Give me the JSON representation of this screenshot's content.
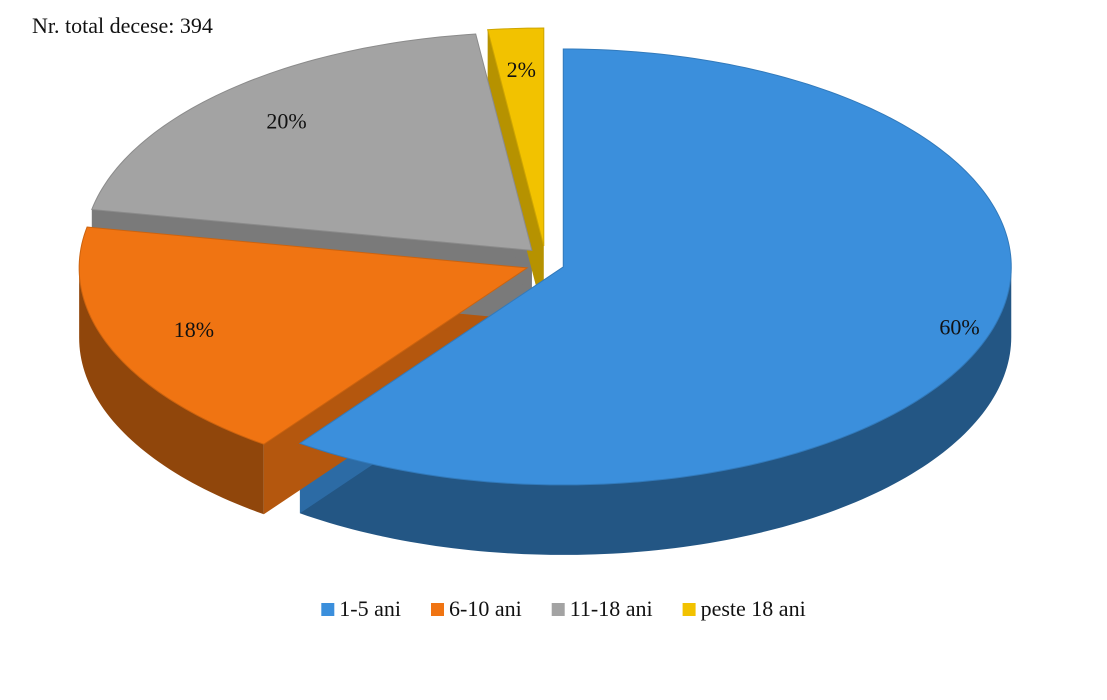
{
  "chart_data": {
    "type": "pie3d",
    "title": "Nr. total decese:  394",
    "categories": [
      "1-5 ani",
      "6-10 ani",
      "11-18 ani",
      "peste 18 ani"
    ],
    "values": [
      60,
      18,
      20,
      2
    ],
    "value_labels": [
      "60%",
      "18%",
      "20%",
      "2%"
    ],
    "colors": [
      "#3b8fdc",
      "#f07412",
      "#a3a3a3",
      "#f2c200"
    ],
    "legend": "bottom"
  }
}
